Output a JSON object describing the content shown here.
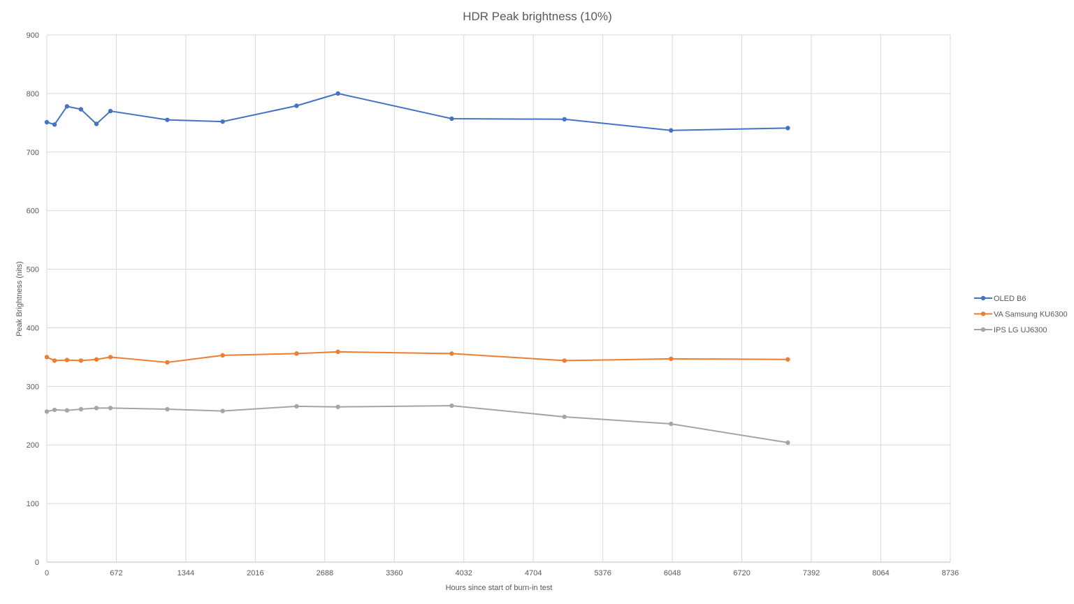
{
  "chart_data": {
    "type": "line",
    "title": "HDR Peak brightness (10%)",
    "xlabel": "Hours since start of burn-in test",
    "ylabel": "Peak Brightness (nits)",
    "xlim": [
      0,
      8736
    ],
    "ylim": [
      0,
      900
    ],
    "x_ticks": [
      0,
      672,
      1344,
      2016,
      2688,
      3360,
      4032,
      4704,
      5376,
      6048,
      6720,
      7392,
      8064,
      8736
    ],
    "y_ticks": [
      0,
      100,
      200,
      300,
      400,
      500,
      600,
      700,
      800,
      900
    ],
    "grid": true,
    "legend_position": "right",
    "series": [
      {
        "name": "OLED B6",
        "color": "#4472c4",
        "points": [
          {
            "x": 0,
            "y": 751
          },
          {
            "x": 75,
            "y": 747
          },
          {
            "x": 195,
            "y": 778
          },
          {
            "x": 330,
            "y": 773
          },
          {
            "x": 480,
            "y": 748
          },
          {
            "x": 615,
            "y": 770
          },
          {
            "x": 1165,
            "y": 755
          },
          {
            "x": 1700,
            "y": 752
          },
          {
            "x": 2415,
            "y": 779
          },
          {
            "x": 2815,
            "y": 800
          },
          {
            "x": 3915,
            "y": 757
          },
          {
            "x": 5005,
            "y": 756
          },
          {
            "x": 6035,
            "y": 737
          },
          {
            "x": 7165,
            "y": 741
          }
        ]
      },
      {
        "name": "VA Samsung KU6300",
        "color": "#ed7d31",
        "points": [
          {
            "x": 0,
            "y": 350
          },
          {
            "x": 75,
            "y": 344
          },
          {
            "x": 195,
            "y": 345
          },
          {
            "x": 330,
            "y": 344
          },
          {
            "x": 480,
            "y": 346
          },
          {
            "x": 615,
            "y": 350
          },
          {
            "x": 1165,
            "y": 341
          },
          {
            "x": 1700,
            "y": 353
          },
          {
            "x": 2415,
            "y": 356
          },
          {
            "x": 2815,
            "y": 359
          },
          {
            "x": 3915,
            "y": 356
          },
          {
            "x": 5005,
            "y": 344
          },
          {
            "x": 6035,
            "y": 347
          },
          {
            "x": 7165,
            "y": 346
          }
        ]
      },
      {
        "name": "IPS LG UJ6300",
        "color": "#a5a5a5",
        "points": [
          {
            "x": 0,
            "y": 257
          },
          {
            "x": 75,
            "y": 260
          },
          {
            "x": 195,
            "y": 259
          },
          {
            "x": 330,
            "y": 261
          },
          {
            "x": 480,
            "y": 263
          },
          {
            "x": 615,
            "y": 263
          },
          {
            "x": 1165,
            "y": 261
          },
          {
            "x": 1700,
            "y": 258
          },
          {
            "x": 2415,
            "y": 266
          },
          {
            "x": 2815,
            "y": 265
          },
          {
            "x": 3915,
            "y": 267
          },
          {
            "x": 5005,
            "y": 248
          },
          {
            "x": 6035,
            "y": 236
          },
          {
            "x": 7165,
            "y": 204
          }
        ]
      }
    ]
  }
}
